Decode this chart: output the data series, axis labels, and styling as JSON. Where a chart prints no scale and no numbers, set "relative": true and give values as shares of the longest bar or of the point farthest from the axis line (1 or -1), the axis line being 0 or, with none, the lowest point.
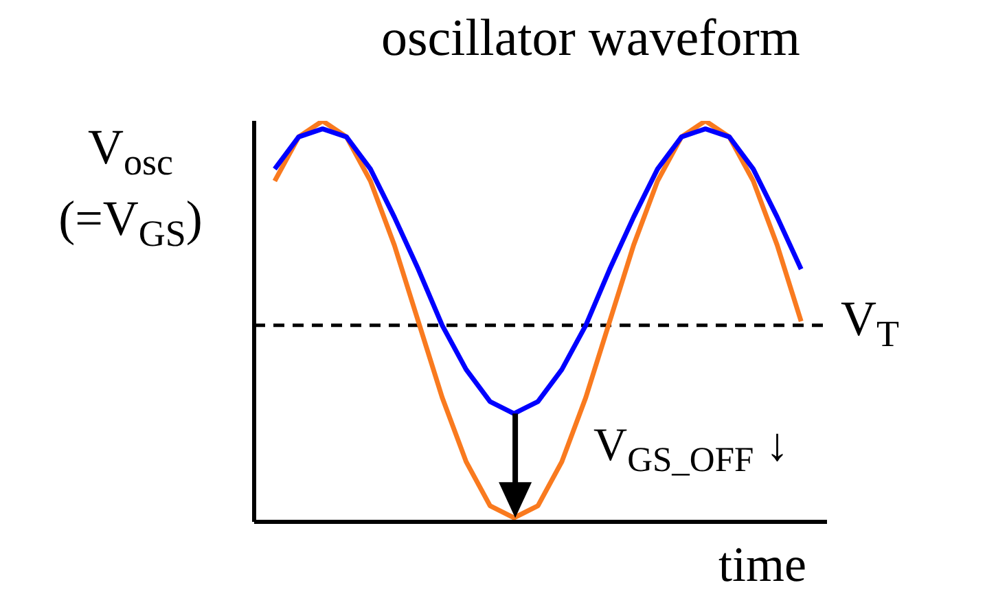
{
  "chart_data": {
    "type": "line",
    "title": "oscillator waveform",
    "ylabel": "V$_{osc}$\n(=V$_{GS}$)",
    "xlabel": "time",
    "relative": true,
    "marker": "none",
    "line_style": "solid",
    "categories": [
      null,
      null,
      null,
      null,
      null,
      null,
      null,
      null,
      null,
      null,
      null,
      null,
      null,
      null,
      null,
      null,
      null,
      null,
      null,
      null,
      null,
      null,
      null
    ],
    "series": [
      {
        "color": "#f97a1f",
        "values": [
          0.85,
          0.96,
          1,
          0.96,
          0.85,
          0.69,
          0.5,
          0.31,
          0.15,
          0.04,
          0.01,
          0.04,
          0.15,
          0.31,
          0.5,
          0.69,
          0.85,
          0.96,
          1,
          0.96,
          0.85,
          0.69,
          0.5
        ]
      },
      {
        "color": "#0000ff",
        "values": [
          0.88,
          0.96,
          0.98,
          0.96,
          0.88,
          0.76,
          0.63,
          0.49,
          0.38,
          0.3,
          0.27,
          0.3,
          0.38,
          0.49,
          0.63,
          0.76,
          0.88,
          0.96,
          0.98,
          0.96,
          0.88,
          0.76,
          0.63
        ]
      }
    ],
    "ref_lines": [
      {
        "axis": "y",
        "value": 0.49,
        "label": "V$_{T}$",
        "color": "#000000",
        "line_style": "dashed"
      }
    ],
    "annotations": [
      "V$_{GS_OFF}$ ↓"
    ]
  }
}
